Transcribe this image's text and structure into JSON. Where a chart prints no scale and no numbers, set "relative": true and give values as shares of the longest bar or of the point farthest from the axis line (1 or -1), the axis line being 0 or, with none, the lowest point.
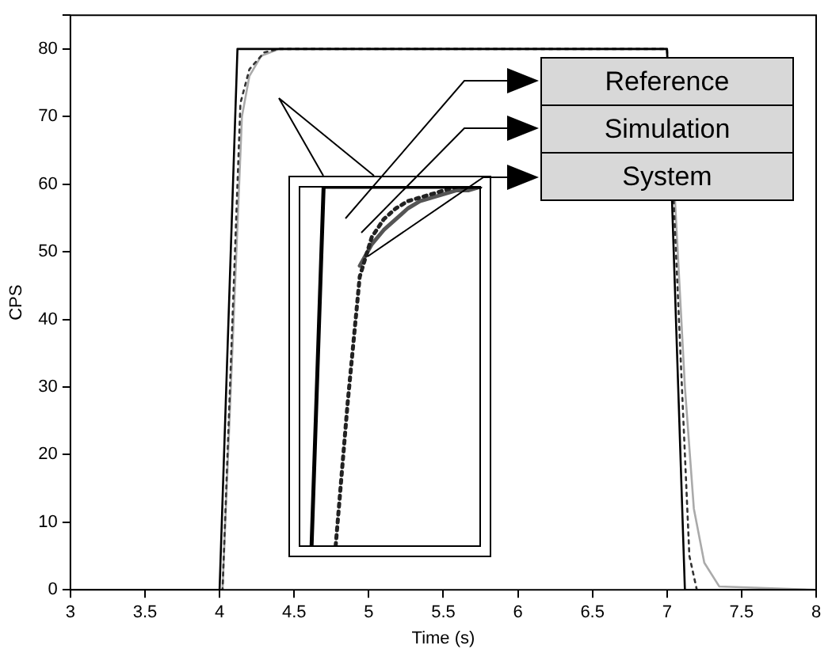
{
  "chart_data": [
    {
      "type": "line",
      "xlabel": "Time (s)",
      "ylabel": "CPS",
      "xlim": [
        3,
        8
      ],
      "ylim": [
        0,
        85
      ],
      "xticks": [
        3,
        3.5,
        4,
        4.5,
        5,
        5.5,
        6,
        6.5,
        7,
        7.5,
        8
      ],
      "yticks": [
        0,
        10,
        20,
        30,
        40,
        50,
        60,
        70,
        80
      ],
      "grid": false,
      "legend": "top right",
      "marker": "none",
      "series": [
        {
          "name": "Reference",
          "color": "#000000",
          "line_style": "solid",
          "x": [
            3,
            4,
            4.12,
            7,
            7.12,
            8
          ],
          "values": [
            0,
            0,
            80,
            80,
            0,
            0
          ]
        },
        {
          "name": "Simulation",
          "color": "#333333",
          "line_style": "dotted",
          "x": [
            3,
            4.02,
            4.14,
            4.2,
            4.3,
            4.4,
            7,
            7.15,
            7.2,
            8
          ],
          "values": [
            0,
            0,
            72,
            77,
            79.5,
            80,
            80,
            5,
            0,
            0
          ]
        },
        {
          "name": "System",
          "color": "#aaaaaa",
          "line_style": "solid",
          "x": [
            3,
            4.02,
            4.15,
            4.2,
            4.28,
            4.4,
            7,
            7.12,
            7.18,
            7.25,
            7.35,
            8
          ],
          "values": [
            0,
            0,
            70,
            76,
            79,
            80,
            80,
            30,
            12,
            4,
            0.5,
            0
          ]
        }
      ]
    },
    {
      "type": "line",
      "relative": true,
      "categories": [
        null,
        null,
        null,
        null,
        null,
        null,
        null,
        null,
        null,
        null,
        null,
        null,
        null,
        null,
        null,
        null
      ],
      "grid": false,
      "marker": "none",
      "series": [
        {
          "color": "#000000",
          "line_style": "solid",
          "values": [
            null,
            0,
            1,
            1,
            1,
            1,
            1,
            1,
            1,
            1,
            1,
            1,
            1,
            1,
            1,
            1
          ]
        },
        {
          "color": "#222222",
          "line_style": "dotted",
          "values": [
            null,
            null,
            null,
            0,
            0.4,
            0.75,
            0.86,
            0.91,
            0.94,
            0.96,
            0.97,
            0.98,
            0.99,
            1,
            1,
            1
          ]
        },
        {
          "color": "#555555",
          "line_style": "solid",
          "values": [
            null,
            null,
            null,
            null,
            null,
            0.78,
            0.84,
            0.88,
            0.91,
            0.94,
            0.96,
            0.97,
            0.98,
            0.99,
            0.99,
            1
          ]
        }
      ]
    }
  ]
}
